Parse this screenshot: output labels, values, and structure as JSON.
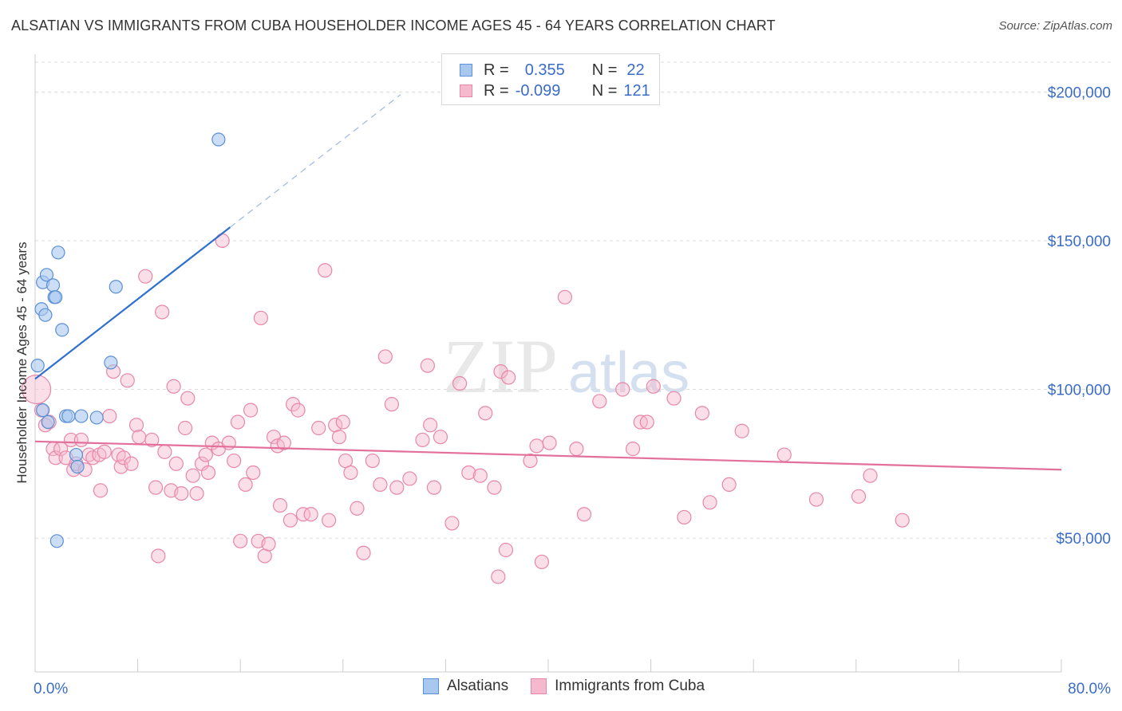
{
  "title": "ALSATIAN VS IMMIGRANTS FROM CUBA HOUSEHOLDER INCOME AGES 45 - 64 YEARS CORRELATION CHART",
  "source": "Source: ZipAtlas.com",
  "watermark": {
    "zip": "ZIP",
    "atlas": "atlas"
  },
  "legend_top": [
    {
      "r_label": "R =",
      "r_value": "0.355",
      "n_label": "N =",
      "n_value": "22"
    },
    {
      "r_label": "R =",
      "r_value": "-0.099",
      "n_label": "N =",
      "n_value": "121"
    }
  ],
  "legend_bottom": [
    "Alsatians",
    "Immigrants from Cuba"
  ],
  "colors": {
    "blue_fill": "#a9c8ef",
    "blue_stroke": "#5b8fd6",
    "blue_line": "#2f6fd0",
    "pink_fill": "#f6b8cc",
    "pink_stroke": "#e887a8",
    "pink_line": "#e2709a",
    "axis_text": "#3a6cc8",
    "grid": "#dddddd"
  },
  "chart_data": {
    "type": "scatter",
    "title": "ALSATIAN VS IMMIGRANTS FROM CUBA HOUSEHOLDER INCOME AGES 45 - 64 YEARS CORRELATION CHART",
    "xlabel": "",
    "ylabel": "Householder Income Ages 45 - 64 years",
    "xlim": [
      0,
      80
    ],
    "ylim": [
      5000,
      210000
    ],
    "x_tick_labels": [
      "0.0%",
      "80.0%"
    ],
    "y_ticks": [
      50000,
      100000,
      150000,
      200000
    ],
    "y_tick_labels": [
      "$50,000",
      "$100,000",
      "$150,000",
      "$200,000"
    ],
    "grid": true,
    "legend_position": "top-center",
    "series": [
      {
        "name": "Alsatians",
        "trend": {
          "x0": 0,
          "y0": 103500,
          "x1": 15.2,
          "y1": 154500,
          "dash_to_x": 28.5
        },
        "points": [
          [
            0.2,
            108000
          ],
          [
            0.5,
            127000
          ],
          [
            0.6,
            136000
          ],
          [
            0.9,
            138500
          ],
          [
            0.8,
            125000
          ],
          [
            1.4,
            135000
          ],
          [
            1.5,
            131000
          ],
          [
            1.6,
            131000
          ],
          [
            1.8,
            146000
          ],
          [
            2.1,
            120000
          ],
          [
            0.6,
            93000
          ],
          [
            1.0,
            89000
          ],
          [
            2.4,
            91000
          ],
          [
            2.6,
            91000
          ],
          [
            3.6,
            91000
          ],
          [
            4.8,
            90500
          ],
          [
            6.3,
            134500
          ],
          [
            5.9,
            109000
          ],
          [
            14.3,
            184000
          ],
          [
            1.7,
            49000
          ],
          [
            3.2,
            78000
          ],
          [
            3.3,
            74000
          ]
        ]
      },
      {
        "name": "Immigrants from Cuba",
        "trend": {
          "x0": 0,
          "y0": 82500,
          "x1": 80,
          "y1": 73000
        },
        "points": [
          [
            0.1,
            100000
          ],
          [
            0.5,
            93000
          ],
          [
            0.8,
            88000
          ],
          [
            1.1,
            89000
          ],
          [
            1.4,
            80000
          ],
          [
            1.6,
            77000
          ],
          [
            2.0,
            80000
          ],
          [
            2.4,
            77000
          ],
          [
            2.8,
            83000
          ],
          [
            3.0,
            73000
          ],
          [
            3.2,
            75000
          ],
          [
            3.6,
            83000
          ],
          [
            3.9,
            73000
          ],
          [
            4.2,
            78000
          ],
          [
            4.5,
            77000
          ],
          [
            5.0,
            78000
          ],
          [
            5.1,
            66000
          ],
          [
            5.4,
            79000
          ],
          [
            5.8,
            91000
          ],
          [
            6.1,
            106000
          ],
          [
            6.5,
            78000
          ],
          [
            6.7,
            74000
          ],
          [
            6.9,
            77000
          ],
          [
            7.2,
            103000
          ],
          [
            7.5,
            75000
          ],
          [
            7.9,
            88000
          ],
          [
            8.1,
            84000
          ],
          [
            8.6,
            138000
          ],
          [
            9.1,
            83000
          ],
          [
            9.4,
            67000
          ],
          [
            9.6,
            44000
          ],
          [
            9.9,
            126000
          ],
          [
            10.1,
            79000
          ],
          [
            10.6,
            66000
          ],
          [
            10.8,
            101000
          ],
          [
            11.0,
            75000
          ],
          [
            11.4,
            65000
          ],
          [
            11.7,
            87000
          ],
          [
            11.9,
            97000
          ],
          [
            12.3,
            71000
          ],
          [
            12.6,
            65000
          ],
          [
            13.0,
            75000
          ],
          [
            13.3,
            78000
          ],
          [
            13.5,
            72000
          ],
          [
            13.8,
            82000
          ],
          [
            14.3,
            80000
          ],
          [
            14.6,
            150000
          ],
          [
            15.1,
            82000
          ],
          [
            15.5,
            76000
          ],
          [
            15.8,
            89000
          ],
          [
            16.0,
            49000
          ],
          [
            16.4,
            68000
          ],
          [
            16.8,
            93000
          ],
          [
            17.0,
            72000
          ],
          [
            17.4,
            49000
          ],
          [
            17.6,
            124000
          ],
          [
            17.9,
            44000
          ],
          [
            18.2,
            48000
          ],
          [
            18.6,
            84000
          ],
          [
            18.9,
            81000
          ],
          [
            19.1,
            61000
          ],
          [
            19.4,
            82000
          ],
          [
            19.9,
            56000
          ],
          [
            20.1,
            95000
          ],
          [
            20.5,
            93000
          ],
          [
            20.9,
            58000
          ],
          [
            21.5,
            58000
          ],
          [
            22.1,
            87000
          ],
          [
            22.6,
            140000
          ],
          [
            22.9,
            56000
          ],
          [
            23.4,
            88000
          ],
          [
            23.7,
            84000
          ],
          [
            24.0,
            89000
          ],
          [
            24.2,
            76000
          ],
          [
            24.6,
            72000
          ],
          [
            25.1,
            60000
          ],
          [
            25.6,
            45000
          ],
          [
            26.3,
            76000
          ],
          [
            26.9,
            68000
          ],
          [
            27.3,
            111000
          ],
          [
            27.8,
            95000
          ],
          [
            28.2,
            67000
          ],
          [
            29.2,
            70000
          ],
          [
            30.2,
            83000
          ],
          [
            30.6,
            108000
          ],
          [
            30.8,
            88000
          ],
          [
            31.1,
            67000
          ],
          [
            31.6,
            84000
          ],
          [
            32.5,
            55000
          ],
          [
            33.1,
            102000
          ],
          [
            33.8,
            72000
          ],
          [
            34.7,
            71000
          ],
          [
            35.1,
            92000
          ],
          [
            35.8,
            67000
          ],
          [
            36.3,
            106000
          ],
          [
            36.7,
            46000
          ],
          [
            36.9,
            104000
          ],
          [
            36.1,
            37000
          ],
          [
            38.6,
            76000
          ],
          [
            39.1,
            81000
          ],
          [
            39.5,
            42000
          ],
          [
            40.1,
            82000
          ],
          [
            41.3,
            131000
          ],
          [
            42.2,
            80000
          ],
          [
            42.8,
            58000
          ],
          [
            44.0,
            96000
          ],
          [
            45.8,
            100000
          ],
          [
            46.6,
            80000
          ],
          [
            47.2,
            89000
          ],
          [
            47.7,
            89000
          ],
          [
            48.2,
            101000
          ],
          [
            49.8,
            97000
          ],
          [
            50.6,
            57000
          ],
          [
            52.0,
            92000
          ],
          [
            52.6,
            62000
          ],
          [
            54.1,
            68000
          ],
          [
            55.1,
            86000
          ],
          [
            58.4,
            78000
          ],
          [
            60.9,
            63000
          ],
          [
            64.2,
            64000
          ],
          [
            65.1,
            71000
          ],
          [
            67.6,
            56000
          ]
        ]
      }
    ]
  }
}
